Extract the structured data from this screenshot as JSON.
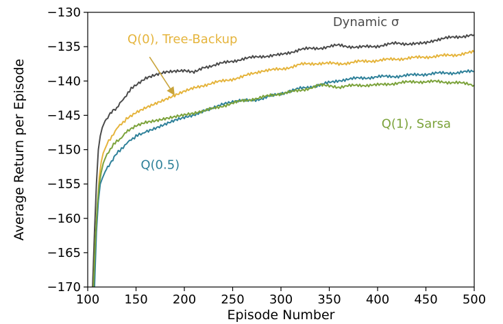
{
  "chart_data": {
    "type": "line",
    "title": "",
    "xlabel": "Episode Number",
    "ylabel": "Average Return per Episode",
    "xlim": [
      100,
      500
    ],
    "ylim": [
      -170,
      -130
    ],
    "xticks": [
      100,
      150,
      200,
      250,
      300,
      350,
      400,
      450,
      500
    ],
    "yticks": [
      -130,
      -135,
      -140,
      -145,
      -150,
      -155,
      -160,
      -165,
      -170
    ],
    "xtick_labels": [
      "100",
      "150",
      "200",
      "250",
      "300",
      "350",
      "400",
      "450",
      "500"
    ],
    "ytick_labels": [
      "−130",
      "−135",
      "−140",
      "−145",
      "−150",
      "−155",
      "−160",
      "−165",
      "−170"
    ],
    "grid": false,
    "legend": "none (inline series labels)",
    "annotation_arrow": {
      "from_series": "Q(0), Tree-Backup",
      "from": [
        164,
        -136.5
      ],
      "to": [
        190,
        -142.1
      ]
    },
    "series": [
      {
        "name": "Dynamic σ",
        "color": "#4a4a4a",
        "label_at": [
          388,
          -132
        ],
        "x": [
          105,
          107,
          109,
          111,
          113,
          115,
          118,
          122,
          126,
          130,
          135,
          140,
          145,
          150,
          160,
          170,
          180,
          190,
          200,
          210,
          220,
          240,
          260,
          280,
          300,
          320,
          340,
          360,
          380,
          400,
          420,
          440,
          450,
          460,
          480,
          500
        ],
        "y": [
          -170,
          -162,
          -155,
          -150,
          -148,
          -146.8,
          -145.8,
          -145,
          -144.4,
          -144,
          -143,
          -142,
          -141.2,
          -140.5,
          -139.6,
          -139.2,
          -138.8,
          -138.6,
          -138.4,
          -138.6,
          -138,
          -137.4,
          -136.8,
          -136.4,
          -136.2,
          -135.4,
          -135.2,
          -134.8,
          -135.1,
          -134.9,
          -134.5,
          -134.6,
          -134.4,
          -134,
          -133.6,
          -133.3
        ]
      },
      {
        "name": "Q(0), Tree-Backup",
        "color": "#e5b43c",
        "label_at": [
          198,
          -134.5
        ],
        "x": [
          106,
          108,
          110,
          112,
          114,
          116,
          120,
          125,
          130,
          135,
          140,
          150,
          160,
          170,
          180,
          190,
          200,
          210,
          220,
          240,
          260,
          280,
          300,
          320,
          340,
          360,
          380,
          400,
          420,
          440,
          460,
          480,
          500
        ],
        "y": [
          -170,
          -163,
          -158,
          -154,
          -151.8,
          -150.5,
          -149.2,
          -148,
          -147,
          -146.2,
          -145.5,
          -144.5,
          -143.8,
          -143.3,
          -142.8,
          -142.2,
          -141.5,
          -140.9,
          -140.6,
          -140,
          -139.4,
          -138.5,
          -138.3,
          -137.6,
          -137.4,
          -137.5,
          -137.2,
          -137,
          -136.8,
          -136.6,
          -136.4,
          -136.2,
          -135.8
        ]
      },
      {
        "name": "Q(0.5)",
        "color": "#2e8099",
        "label_at": [
          175,
          -152.8
        ],
        "x": [
          107,
          109,
          111,
          113,
          115,
          118,
          122,
          126,
          130,
          135,
          140,
          145,
          150,
          155,
          160,
          170,
          180,
          190,
          200,
          210,
          220,
          230,
          240,
          250,
          260,
          280,
          300,
          320,
          340,
          360,
          380,
          400,
          420,
          440,
          460,
          480,
          500
        ],
        "y": [
          -170,
          -162,
          -157.5,
          -155,
          -154.2,
          -153.2,
          -152.2,
          -151.4,
          -150.6,
          -149.8,
          -149.2,
          -148.5,
          -148,
          -147.8,
          -147.3,
          -146.8,
          -146.3,
          -145.8,
          -145.4,
          -145,
          -144.3,
          -143.8,
          -143.3,
          -143.1,
          -142.9,
          -142.6,
          -141.8,
          -141.1,
          -140.6,
          -139.9,
          -139.6,
          -139.4,
          -139.3,
          -139.1,
          -138.9,
          -138.8,
          -138.6
        ]
      },
      {
        "name": "Q(1), Sarsa",
        "color": "#7ba23a",
        "label_at": [
          440,
          -146.8
        ],
        "x": [
          106,
          108,
          110,
          112,
          114,
          116,
          120,
          125,
          130,
          135,
          140,
          150,
          160,
          170,
          180,
          190,
          200,
          210,
          220,
          240,
          260,
          280,
          300,
          320,
          340,
          350,
          360,
          380,
          400,
          420,
          440,
          460,
          480,
          500
        ],
        "y": [
          -170,
          -163,
          -158,
          -155,
          -153.3,
          -152,
          -150.6,
          -149.6,
          -148.8,
          -148.2,
          -147.5,
          -146.6,
          -146,
          -145.7,
          -145.4,
          -145.2,
          -145,
          -144.8,
          -144.4,
          -143.6,
          -142.9,
          -142.4,
          -141.8,
          -141.4,
          -140.6,
          -140.7,
          -140.9,
          -140.6,
          -140.6,
          -140.3,
          -140.1,
          -140.1,
          -140.2,
          -140.6
        ]
      }
    ]
  }
}
